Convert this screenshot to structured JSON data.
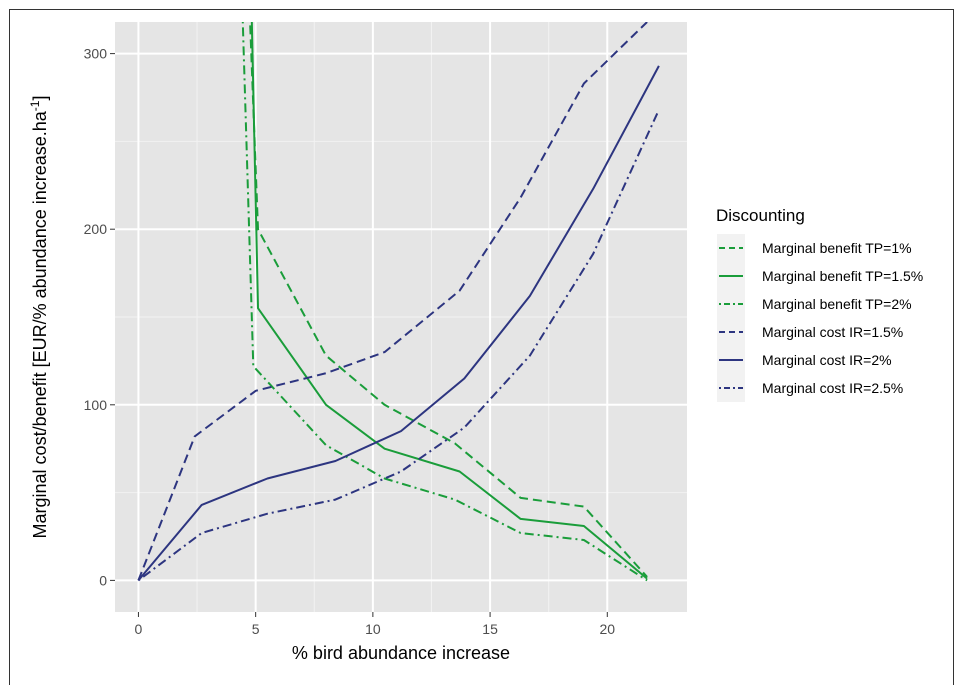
{
  "chart_data": {
    "type": "line",
    "xlabel": "% bird abundance increase",
    "ylabel": "Marginal cost/benefit [EUR/% abundance increase.ha",
    "ylabel_sup": "-1",
    "ylabel_suffix": "]",
    "xlim": [
      -1,
      23.4
    ],
    "ylim": [
      -18,
      318
    ],
    "xticks": [
      0,
      5,
      10,
      15,
      20
    ],
    "yticks": [
      0,
      100,
      200,
      300
    ],
    "grid": true,
    "legend_position": "right",
    "legend_title": "Discounting",
    "series": [
      {
        "name": "Marginal benefit TP=1%",
        "color": "#1a9d3a",
        "dash": "dashed",
        "points": [
          [
            4.7,
            340
          ],
          [
            5.1,
            200
          ],
          [
            8,
            128
          ],
          [
            10.5,
            100
          ],
          [
            13.5,
            78
          ],
          [
            16.3,
            47
          ],
          [
            19,
            42
          ],
          [
            21.7,
            2
          ]
        ]
      },
      {
        "name": "Marginal benefit TP=1.5%",
        "color": "#1a9d3a",
        "dash": "solid",
        "points": [
          [
            4.8,
            340
          ],
          [
            5.1,
            155
          ],
          [
            8,
            100
          ],
          [
            10.5,
            75
          ],
          [
            13.7,
            62
          ],
          [
            16.3,
            35
          ],
          [
            19,
            31
          ],
          [
            21.7,
            1
          ]
        ]
      },
      {
        "name": "Marginal benefit TP=2%",
        "color": "#1a9d3a",
        "dash": "dotdash",
        "points": [
          [
            4.4,
            340
          ],
          [
            4.9,
            122
          ],
          [
            8,
            77
          ],
          [
            10.5,
            58
          ],
          [
            13.5,
            46
          ],
          [
            16.3,
            27
          ],
          [
            19,
            23
          ],
          [
            21.7,
            0
          ]
        ]
      },
      {
        "name": "Marginal cost IR=1.5%",
        "color": "#2d3580",
        "dash": "dashed",
        "points": [
          [
            0,
            0
          ],
          [
            2.4,
            82
          ],
          [
            5,
            108
          ],
          [
            8,
            118
          ],
          [
            10.5,
            130
          ],
          [
            13.7,
            165
          ],
          [
            16.3,
            218
          ],
          [
            19,
            283
          ],
          [
            21.7,
            318
          ]
        ]
      },
      {
        "name": "Marginal cost IR=2%",
        "color": "#2d3580",
        "dash": "solid",
        "points": [
          [
            0,
            0
          ],
          [
            2.7,
            43
          ],
          [
            5.5,
            58
          ],
          [
            8.4,
            68
          ],
          [
            11.2,
            85
          ],
          [
            13.9,
            115
          ],
          [
            16.7,
            162
          ],
          [
            19.4,
            223
          ],
          [
            22.2,
            293
          ]
        ]
      },
      {
        "name": "Marginal cost IR=2.5%",
        "color": "#2d3580",
        "dash": "dotdash",
        "points": [
          [
            0,
            0
          ],
          [
            2.7,
            27
          ],
          [
            5.5,
            38
          ],
          [
            8.4,
            46
          ],
          [
            11.2,
            62
          ],
          [
            13.9,
            87
          ],
          [
            16.7,
            128
          ],
          [
            19.4,
            186
          ],
          [
            22.2,
            268
          ]
        ]
      }
    ]
  }
}
